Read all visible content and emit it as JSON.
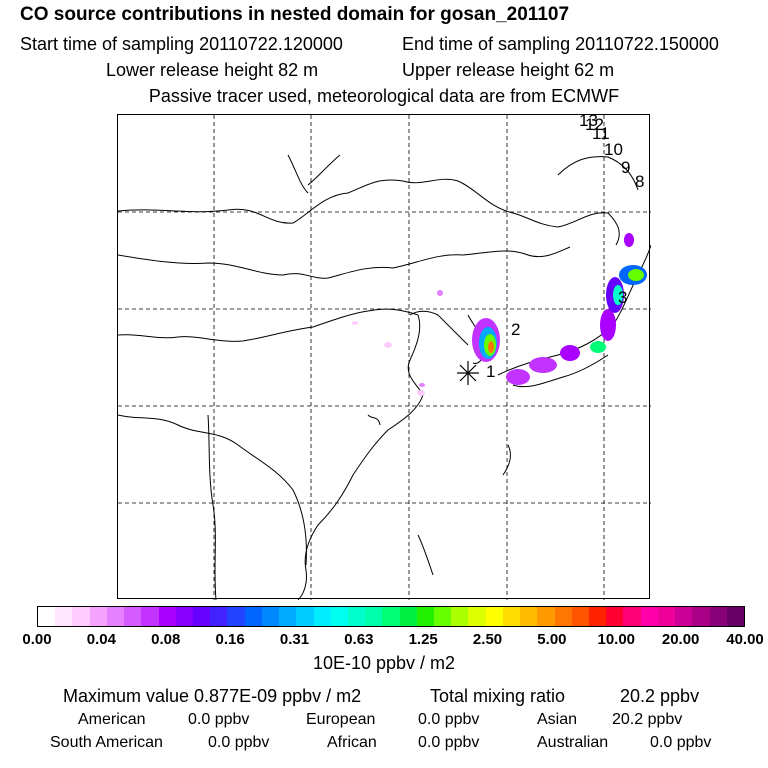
{
  "header": {
    "title": "CO  source contributions in nested domain for gosan_201107",
    "start_label": "Start time of sampling 20110722.120000",
    "end_label": "End time of sampling 20110722.150000",
    "lower_label": "Lower release height   82 m",
    "upper_label": "Upper release height   62 m",
    "note": "Passive tracer used, meteorological data are from ECMWF"
  },
  "map": {
    "station_markers": [
      "1",
      "2",
      "3",
      "8",
      "9",
      "10",
      "11",
      "12",
      "13"
    ]
  },
  "colorbar": {
    "unit": "10E-10 ppbv / m2",
    "ticks": [
      "0.00",
      "0.04",
      "0.08",
      "0.16",
      "0.31",
      "0.63",
      "1.25",
      "2.50",
      "5.00",
      "10.00",
      "20.00",
      "40.00"
    ],
    "colors": [
      "#ffffff",
      "#ffe6ff",
      "#ffccff",
      "#f5a3ff",
      "#e580ff",
      "#d45cff",
      "#c233ff",
      "#aa00ff",
      "#8800ff",
      "#6600ff",
      "#4422ff",
      "#2244ff",
      "#0066ff",
      "#0088ff",
      "#00aaff",
      "#00ccff",
      "#00eeff",
      "#00ffee",
      "#00ffcc",
      "#00ffaa",
      "#00ff77",
      "#00ee44",
      "#22ee00",
      "#66ff00",
      "#aaff00",
      "#ddff00",
      "#ffff00",
      "#ffdd00",
      "#ffbb00",
      "#ff9900",
      "#ff7700",
      "#ff5500",
      "#ff2200",
      "#ff0033",
      "#ff0077",
      "#ff00aa",
      "#ee0099",
      "#cc0099",
      "#aa0088",
      "#880077",
      "#660066"
    ]
  },
  "stats": {
    "max_label": "Maximum value  0.877E-09 ppbv / m2",
    "total_label": "Total mixing ratio",
    "total_value": "20.2 ppbv"
  },
  "regions": {
    "american": {
      "label": "American",
      "value": "0.0 ppbv"
    },
    "european": {
      "label": "European",
      "value": "0.0 ppbv"
    },
    "asian": {
      "label": "Asian",
      "value": "20.2 ppbv"
    },
    "south_american": {
      "label": "South American",
      "value": "0.0 ppbv"
    },
    "african": {
      "label": "African",
      "value": "0.0 ppbv"
    },
    "australian": {
      "label": "Australian",
      "value": "0.0 ppbv"
    }
  }
}
